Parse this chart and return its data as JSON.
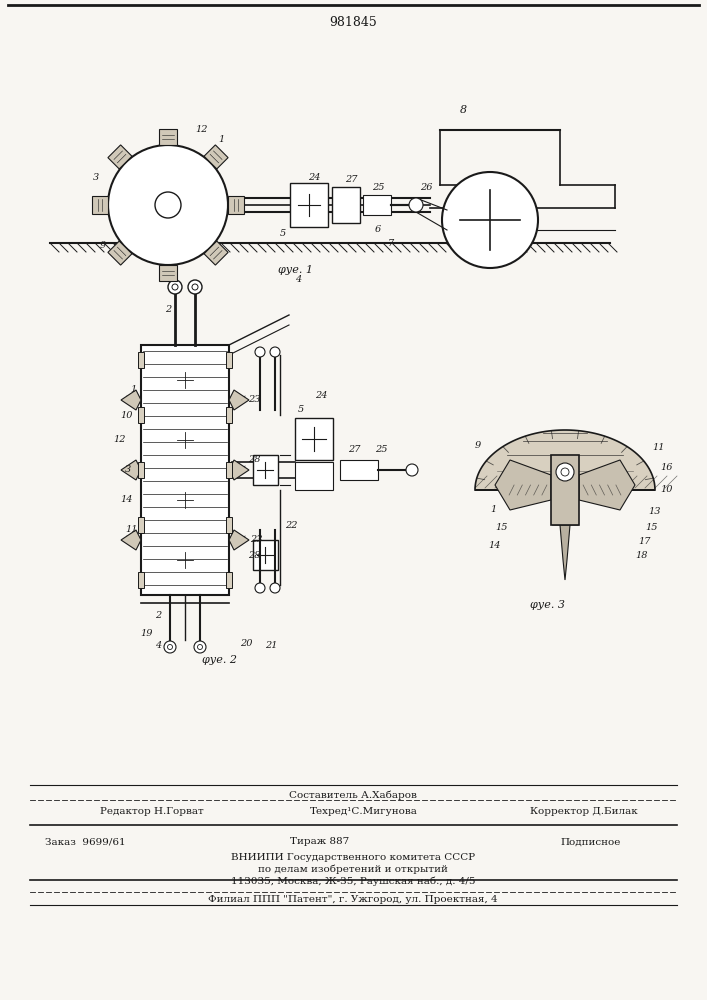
{
  "patent_number": "981845",
  "bg": "#f8f6f2",
  "lc": "#1a1a1a",
  "fig1_caption": "φуе. 1",
  "fig2_caption": "φуе. 2",
  "fig3_caption": "φуе. 3",
  "footer_sostavitel": "Составитель А.Хабаров",
  "footer_editor": "Редактор Н.Горват",
  "footer_tech": "Техред¹С.Мигунова",
  "footer_corrector": "Корректор Д.Билак",
  "footer_order": "Заказ  9699/61",
  "footer_tirazh": "Тираж 887",
  "footer_podpisnoe": "Подписное",
  "footer_vniipи": "ВНИИПИ Государственного комитета СССР",
  "footer_po_delam": "по делам изобретений и открытий",
  "footer_address": "113035, Москва, Ж-35, Раушская наб., д. 4/5",
  "footer_filial": "Филиал ППП \"Патент\", г. Ужгород, ул. Проектная, 4"
}
